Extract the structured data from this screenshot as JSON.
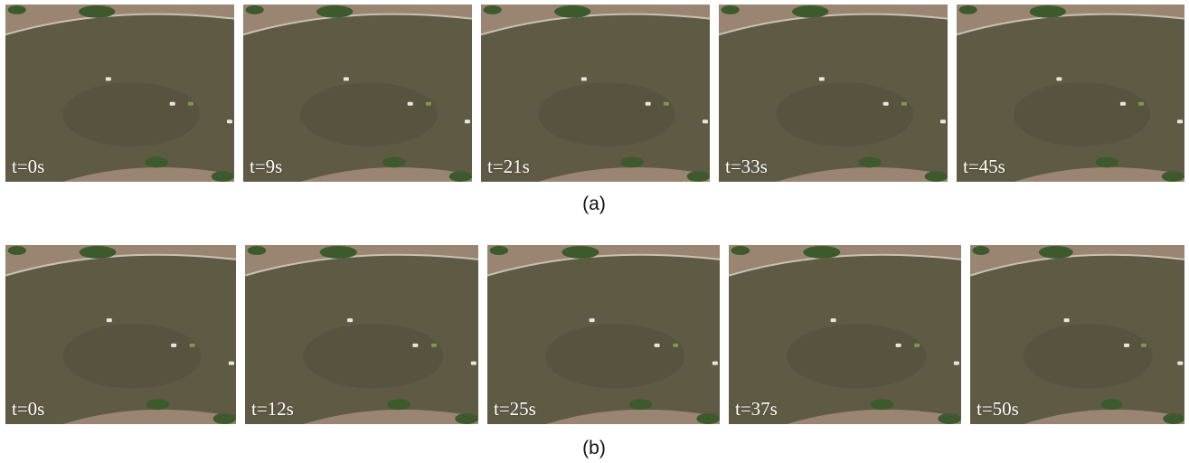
{
  "colors": {
    "water": "#5e5a44",
    "bank": "#9a8572",
    "vegetation": "#3d5a2c",
    "label": "#ffffff"
  },
  "rows": [
    {
      "caption": "(a)",
      "frames": [
        {
          "label": "t=0s"
        },
        {
          "label": "t=9s"
        },
        {
          "label": "t=21s"
        },
        {
          "label": "t=33s"
        },
        {
          "label": "t=45s"
        }
      ]
    },
    {
      "caption": "(b)",
      "frames": [
        {
          "label": "t=0s"
        },
        {
          "label": "t=12s"
        },
        {
          "label": "t=25s"
        },
        {
          "label": "t=37s"
        },
        {
          "label": "t=50s"
        }
      ]
    }
  ]
}
